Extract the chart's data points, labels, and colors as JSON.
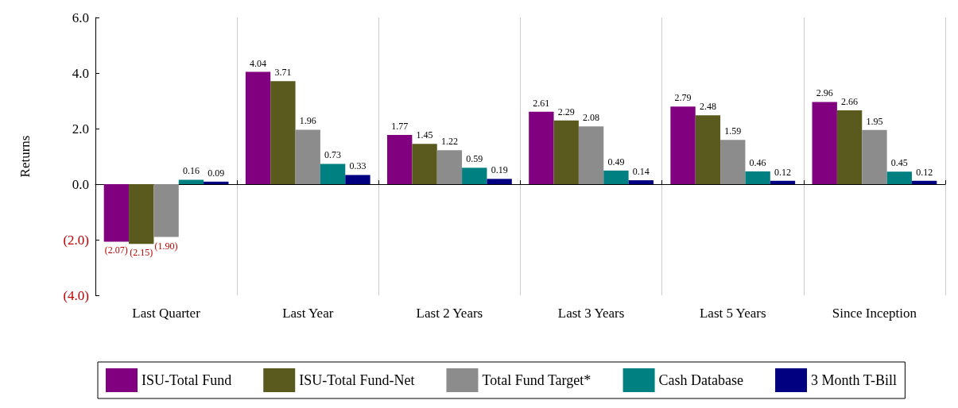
{
  "chart_data": {
    "type": "bar",
    "ylabel": "Returns",
    "categories": [
      "Last Quarter",
      "Last Year",
      "Last 2 Years",
      "Last 3 Years",
      "Last 5 Years",
      "Since Inception"
    ],
    "series": [
      {
        "name": "ISU-Total Fund",
        "color": "#800080",
        "values": [
          -2.07,
          4.04,
          1.77,
          2.61,
          2.79,
          2.96
        ],
        "value_labels": [
          "(2.07)",
          "4.04",
          "1.77",
          "2.61",
          "2.79",
          "2.96"
        ]
      },
      {
        "name": "ISU-Total Fund-Net",
        "color": "#5a5a1e",
        "values": [
          -2.15,
          3.71,
          1.45,
          2.29,
          2.48,
          2.66
        ],
        "value_labels": [
          "(2.15)",
          "3.71",
          "1.45",
          "2.29",
          "2.48",
          "2.66"
        ]
      },
      {
        "name": "Total Fund Target*",
        "color": "#8c8c8c",
        "values": [
          -1.9,
          1.96,
          1.22,
          2.08,
          1.59,
          1.95
        ],
        "value_labels": [
          "(1.90)",
          "1.96",
          "1.22",
          "2.08",
          "1.59",
          "1.95"
        ]
      },
      {
        "name": "Cash Database",
        "color": "#008080",
        "values": [
          0.16,
          0.73,
          0.59,
          0.49,
          0.46,
          0.45
        ],
        "value_labels": [
          "0.16",
          "0.73",
          "0.59",
          "0.49",
          "0.46",
          "0.45"
        ]
      },
      {
        "name": "3 Month T-Bill",
        "color": "#000080",
        "values": [
          0.09,
          0.33,
          0.19,
          0.14,
          0.12,
          0.12
        ],
        "value_labels": [
          "0.09",
          "0.33",
          "0.19",
          "0.14",
          "0.12",
          "0.12"
        ]
      }
    ],
    "ylim": [
      -4,
      6
    ],
    "yticks": [
      {
        "value": -4,
        "label": "(4.0)"
      },
      {
        "value": -2,
        "label": "(2.0)"
      },
      {
        "value": 0,
        "label": "0.0"
      },
      {
        "value": 2,
        "label": "2.0"
      },
      {
        "value": 4,
        "label": "4.0"
      },
      {
        "value": 6,
        "label": "6.0"
      }
    ],
    "grid": "x",
    "legend": "bottom"
  }
}
